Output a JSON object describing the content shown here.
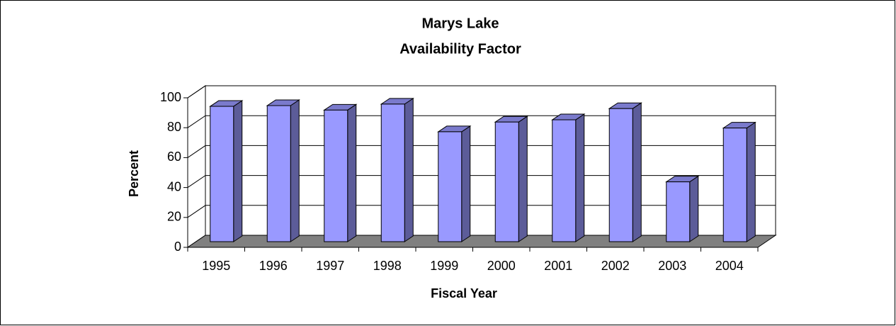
{
  "chart_data": {
    "type": "bar3d",
    "title": "Marys Lake",
    "subtitle": "Availability Factor",
    "x_label": "Fiscal Year",
    "y_label": "Percent",
    "categories": [
      "1995",
      "1996",
      "1997",
      "1998",
      "1999",
      "2000",
      "2001",
      "2002",
      "2003",
      "2004"
    ],
    "values": [
      90.5,
      91,
      88,
      92,
      73.5,
      80,
      81.5,
      89,
      40,
      76
    ],
    "color": "#9999ff",
    "ylim": [
      0,
      100
    ],
    "yticks": [
      0,
      20,
      40,
      60,
      80,
      100
    ],
    "grid": true
  }
}
